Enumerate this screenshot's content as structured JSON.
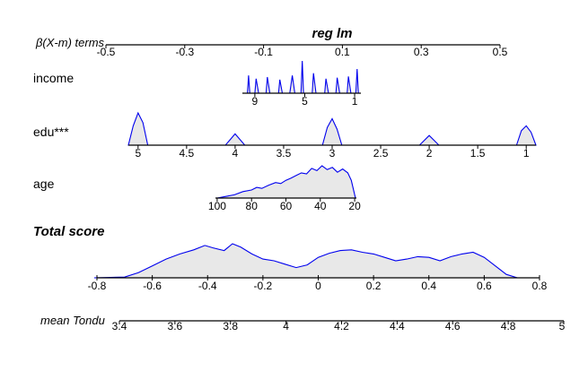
{
  "chart_data": {
    "type": "nomogram",
    "title": "reg lm",
    "points_axis": {
      "label": "β(X-m) terms",
      "ticks": [
        "-0.5",
        "-0.3",
        "-0.1",
        "0.1",
        "0.3",
        "0.5"
      ],
      "range": [
        -0.5,
        0.5
      ]
    },
    "variables": [
      {
        "name": "income",
        "tick_labels": [
          "9",
          "5",
          "1"
        ],
        "density": [
          {
            "v": 9.6,
            "d": 0
          },
          {
            "v": 9.5,
            "d": 0.55
          },
          {
            "v": 9.4,
            "d": 0
          },
          {
            "v": 9,
            "d": 0
          },
          {
            "v": 8.9,
            "d": 0.45
          },
          {
            "v": 8.7,
            "d": 0
          },
          {
            "v": 8.1,
            "d": 0
          },
          {
            "v": 8,
            "d": 0.5
          },
          {
            "v": 7.8,
            "d": 0
          },
          {
            "v": 7.1,
            "d": 0
          },
          {
            "v": 7,
            "d": 0.42
          },
          {
            "v": 6.8,
            "d": 0
          },
          {
            "v": 6.2,
            "d": 0
          },
          {
            "v": 6,
            "d": 0.55
          },
          {
            "v": 5.8,
            "d": 0
          },
          {
            "v": 5.3,
            "d": 0
          },
          {
            "v": 5.2,
            "d": 1.0
          },
          {
            "v": 5.1,
            "d": 0
          },
          {
            "v": 4.4,
            "d": 0
          },
          {
            "v": 4.3,
            "d": 0.62
          },
          {
            "v": 4.1,
            "d": 0
          },
          {
            "v": 3.4,
            "d": 0
          },
          {
            "v": 3.3,
            "d": 0.45
          },
          {
            "v": 3.1,
            "d": 0
          },
          {
            "v": 2.5,
            "d": 0
          },
          {
            "v": 2.4,
            "d": 0.48
          },
          {
            "v": 2.2,
            "d": 0
          },
          {
            "v": 1.6,
            "d": 0
          },
          {
            "v": 1.5,
            "d": 0.52
          },
          {
            "v": 1.3,
            "d": 0
          },
          {
            "v": 0.9,
            "d": 0
          },
          {
            "v": 0.8,
            "d": 0.75
          },
          {
            "v": 0.7,
            "d": 0
          }
        ]
      },
      {
        "name": "edu",
        "significance": "***",
        "tick_labels": [
          "5",
          "4.5",
          "4",
          "3.5",
          "3",
          "2.5",
          "2",
          "1.5",
          "1"
        ],
        "density": [
          {
            "v": 5.1,
            "d": 0
          },
          {
            "v": 5.05,
            "d": 0.6
          },
          {
            "v": 5,
            "d": 1.0
          },
          {
            "v": 4.95,
            "d": 0.7
          },
          {
            "v": 4.9,
            "d": 0
          },
          {
            "v": 4.1,
            "d": 0
          },
          {
            "v": 4,
            "d": 0.35
          },
          {
            "v": 3.9,
            "d": 0
          },
          {
            "v": 3.1,
            "d": 0
          },
          {
            "v": 3.05,
            "d": 0.55
          },
          {
            "v": 3,
            "d": 0.82
          },
          {
            "v": 2.95,
            "d": 0.5
          },
          {
            "v": 2.9,
            "d": 0
          },
          {
            "v": 2.1,
            "d": 0
          },
          {
            "v": 2,
            "d": 0.3
          },
          {
            "v": 1.9,
            "d": 0
          },
          {
            "v": 1.1,
            "d": 0
          },
          {
            "v": 1.05,
            "d": 0.45
          },
          {
            "v": 1,
            "d": 0.6
          },
          {
            "v": 0.95,
            "d": 0.4
          },
          {
            "v": 0.9,
            "d": 0
          }
        ]
      },
      {
        "name": "age",
        "tick_labels": [
          "100",
          "80",
          "60",
          "40",
          "20"
        ],
        "density": [
          {
            "v": 100,
            "d": 0
          },
          {
            "v": 95,
            "d": 0.05
          },
          {
            "v": 90,
            "d": 0.1
          },
          {
            "v": 85,
            "d": 0.2
          },
          {
            "v": 80,
            "d": 0.25
          },
          {
            "v": 77,
            "d": 0.33
          },
          {
            "v": 74,
            "d": 0.3
          },
          {
            "v": 70,
            "d": 0.4
          },
          {
            "v": 66,
            "d": 0.48
          },
          {
            "v": 63,
            "d": 0.45
          },
          {
            "v": 60,
            "d": 0.55
          },
          {
            "v": 57,
            "d": 0.62
          },
          {
            "v": 54,
            "d": 0.7
          },
          {
            "v": 51,
            "d": 0.78
          },
          {
            "v": 48,
            "d": 0.75
          },
          {
            "v": 45,
            "d": 0.92
          },
          {
            "v": 42,
            "d": 0.85
          },
          {
            "v": 39,
            "d": 1.0
          },
          {
            "v": 36,
            "d": 0.88
          },
          {
            "v": 33,
            "d": 0.95
          },
          {
            "v": 30,
            "d": 0.8
          },
          {
            "v": 27,
            "d": 0.9
          },
          {
            "v": 24,
            "d": 0.78
          },
          {
            "v": 22,
            "d": 0.55
          },
          {
            "v": 20,
            "d": 0.1
          },
          {
            "v": 19.5,
            "d": 0
          }
        ]
      }
    ],
    "total_score": {
      "label": "Total score",
      "ticks": [
        "-0.8",
        "-0.6",
        "-0.4",
        "-0.2",
        "0",
        "0.2",
        "0.4",
        "0.6",
        "0.8"
      ],
      "range": [
        -0.8,
        0.8
      ],
      "density": [
        {
          "v": -0.81,
          "d": 0
        },
        {
          "v": -0.7,
          "d": 0.02
        },
        {
          "v": -0.65,
          "d": 0.15
        },
        {
          "v": -0.6,
          "d": 0.35
        },
        {
          "v": -0.55,
          "d": 0.55
        },
        {
          "v": -0.5,
          "d": 0.7
        },
        {
          "v": -0.45,
          "d": 0.82
        },
        {
          "v": -0.41,
          "d": 0.95
        },
        {
          "v": -0.38,
          "d": 0.88
        },
        {
          "v": -0.34,
          "d": 0.8
        },
        {
          "v": -0.31,
          "d": 1.0
        },
        {
          "v": -0.28,
          "d": 0.9
        },
        {
          "v": -0.24,
          "d": 0.7
        },
        {
          "v": -0.2,
          "d": 0.55
        },
        {
          "v": -0.16,
          "d": 0.5
        },
        {
          "v": -0.12,
          "d": 0.4
        },
        {
          "v": -0.08,
          "d": 0.3
        },
        {
          "v": -0.04,
          "d": 0.38
        },
        {
          "v": 0,
          "d": 0.6
        },
        {
          "v": 0.04,
          "d": 0.72
        },
        {
          "v": 0.08,
          "d": 0.8
        },
        {
          "v": 0.12,
          "d": 0.82
        },
        {
          "v": 0.16,
          "d": 0.75
        },
        {
          "v": 0.2,
          "d": 0.7
        },
        {
          "v": 0.24,
          "d": 0.6
        },
        {
          "v": 0.28,
          "d": 0.5
        },
        {
          "v": 0.32,
          "d": 0.55
        },
        {
          "v": 0.36,
          "d": 0.62
        },
        {
          "v": 0.4,
          "d": 0.6
        },
        {
          "v": 0.44,
          "d": 0.5
        },
        {
          "v": 0.48,
          "d": 0.62
        },
        {
          "v": 0.52,
          "d": 0.7
        },
        {
          "v": 0.56,
          "d": 0.75
        },
        {
          "v": 0.6,
          "d": 0.6
        },
        {
          "v": 0.64,
          "d": 0.35
        },
        {
          "v": 0.68,
          "d": 0.1
        },
        {
          "v": 0.72,
          "d": 0
        }
      ]
    },
    "outcome_axis": {
      "label": "mean Tondu",
      "ticks": [
        "3.4",
        "3.6",
        "3.8",
        "4",
        "4.2",
        "4.4",
        "4.6",
        "4.8",
        "5"
      ],
      "range": [
        3.4,
        5.0
      ]
    },
    "colors": {
      "density_line": "#0000ee",
      "density_fill": "#e8e8e8",
      "axis": "#000000"
    }
  }
}
